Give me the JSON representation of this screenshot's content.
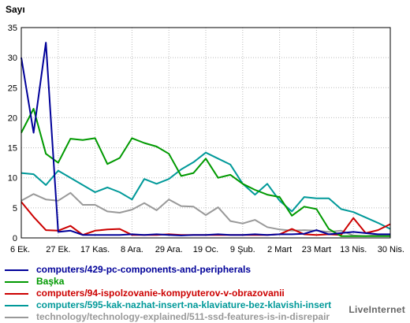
{
  "chart_data": {
    "type": "line",
    "ylabel": "Sayı",
    "ylim": [
      0,
      35
    ],
    "yticks": [
      0,
      5,
      10,
      15,
      20,
      25,
      30,
      35
    ],
    "x_tick_labels": [
      "6 Ek.",
      "27 Ek.",
      "17 Kas.",
      "8 Ara.",
      "29 Ara.",
      "19 Oc.",
      "9 Şub.",
      "2 Mart",
      "23 Mart",
      "13 Nis.",
      "30 Nis."
    ],
    "x_tick_indices": [
      0,
      3,
      6,
      9,
      12,
      15,
      18,
      21,
      24,
      27,
      30
    ],
    "n_points": 31,
    "grid": true,
    "legend_position": "bottom",
    "series": [
      {
        "name": "computers/429-pc-components-and-peripherals",
        "color": "#000099",
        "values": [
          30,
          17.5,
          32.5,
          1,
          1.2,
          0.5,
          0.5,
          0.5,
          0.5,
          0.6,
          0.5,
          0.6,
          0.5,
          0.4,
          0.5,
          0.5,
          0.6,
          0.5,
          0.5,
          0.6,
          0.5,
          0.6,
          0.6,
          0.7,
          1.3,
          0.6,
          0.8,
          1,
          0.8,
          0.6,
          0.6
        ]
      },
      {
        "name": "Başka",
        "color": "#009900",
        "values": [
          17.5,
          21.5,
          14,
          12.5,
          16.5,
          16.3,
          16.6,
          12.3,
          13.3,
          16.6,
          15.8,
          15.2,
          14,
          10.3,
          10.8,
          13.2,
          10,
          10.5,
          9,
          8,
          7.2,
          6.8,
          3.7,
          5.2,
          4.8,
          1.5,
          0.3,
          0.3,
          0.3,
          0.3,
          0.3
        ]
      },
      {
        "name": "computers/94-ispolzovanie-kompyuterov-v-obrazovanii",
        "color": "#cc0000",
        "values": [
          6,
          3.5,
          1.3,
          1.2,
          2,
          0.5,
          1.2,
          1.4,
          1.5,
          0.5,
          0.5,
          0.5,
          0.6,
          0.5,
          0.5,
          0.5,
          0.5,
          0.5,
          0.5,
          0.5,
          0.5,
          0.6,
          1.5,
          0.6,
          0.5,
          0.6,
          0.5,
          3.3,
          0.8,
          1.3,
          2.3
        ]
      },
      {
        "name": "computers/595-kak-nazhat-insert-na-klaviature-bez-klavishi-insert",
        "color": "#009999",
        "values": [
          10.8,
          10.6,
          8.8,
          11.2,
          10,
          8.8,
          7.6,
          8.4,
          7.6,
          6.4,
          9.8,
          9,
          9.8,
          11.4,
          12.6,
          14.2,
          13.2,
          12.2,
          9,
          7.2,
          9,
          6.2,
          4.4,
          6.8,
          6.6,
          6.6,
          4.8,
          4.3,
          3.4,
          2.5,
          1.5
        ]
      },
      {
        "name": "technology/technology-explained/511-ssd-features-is-in-disrepair",
        "color": "#999999",
        "values": [
          6.2,
          7.3,
          6.4,
          6.2,
          7.5,
          5.5,
          5.5,
          4.4,
          4.2,
          4.7,
          5.8,
          4.6,
          6.4,
          5.3,
          5.2,
          3.8,
          5.1,
          2.8,
          2.4,
          3,
          1.8,
          1.4,
          1.2,
          1.3,
          1.2,
          1,
          1.2,
          0.4,
          0.3,
          0.5,
          0.5
        ]
      }
    ]
  },
  "watermark": "LiveInternet"
}
